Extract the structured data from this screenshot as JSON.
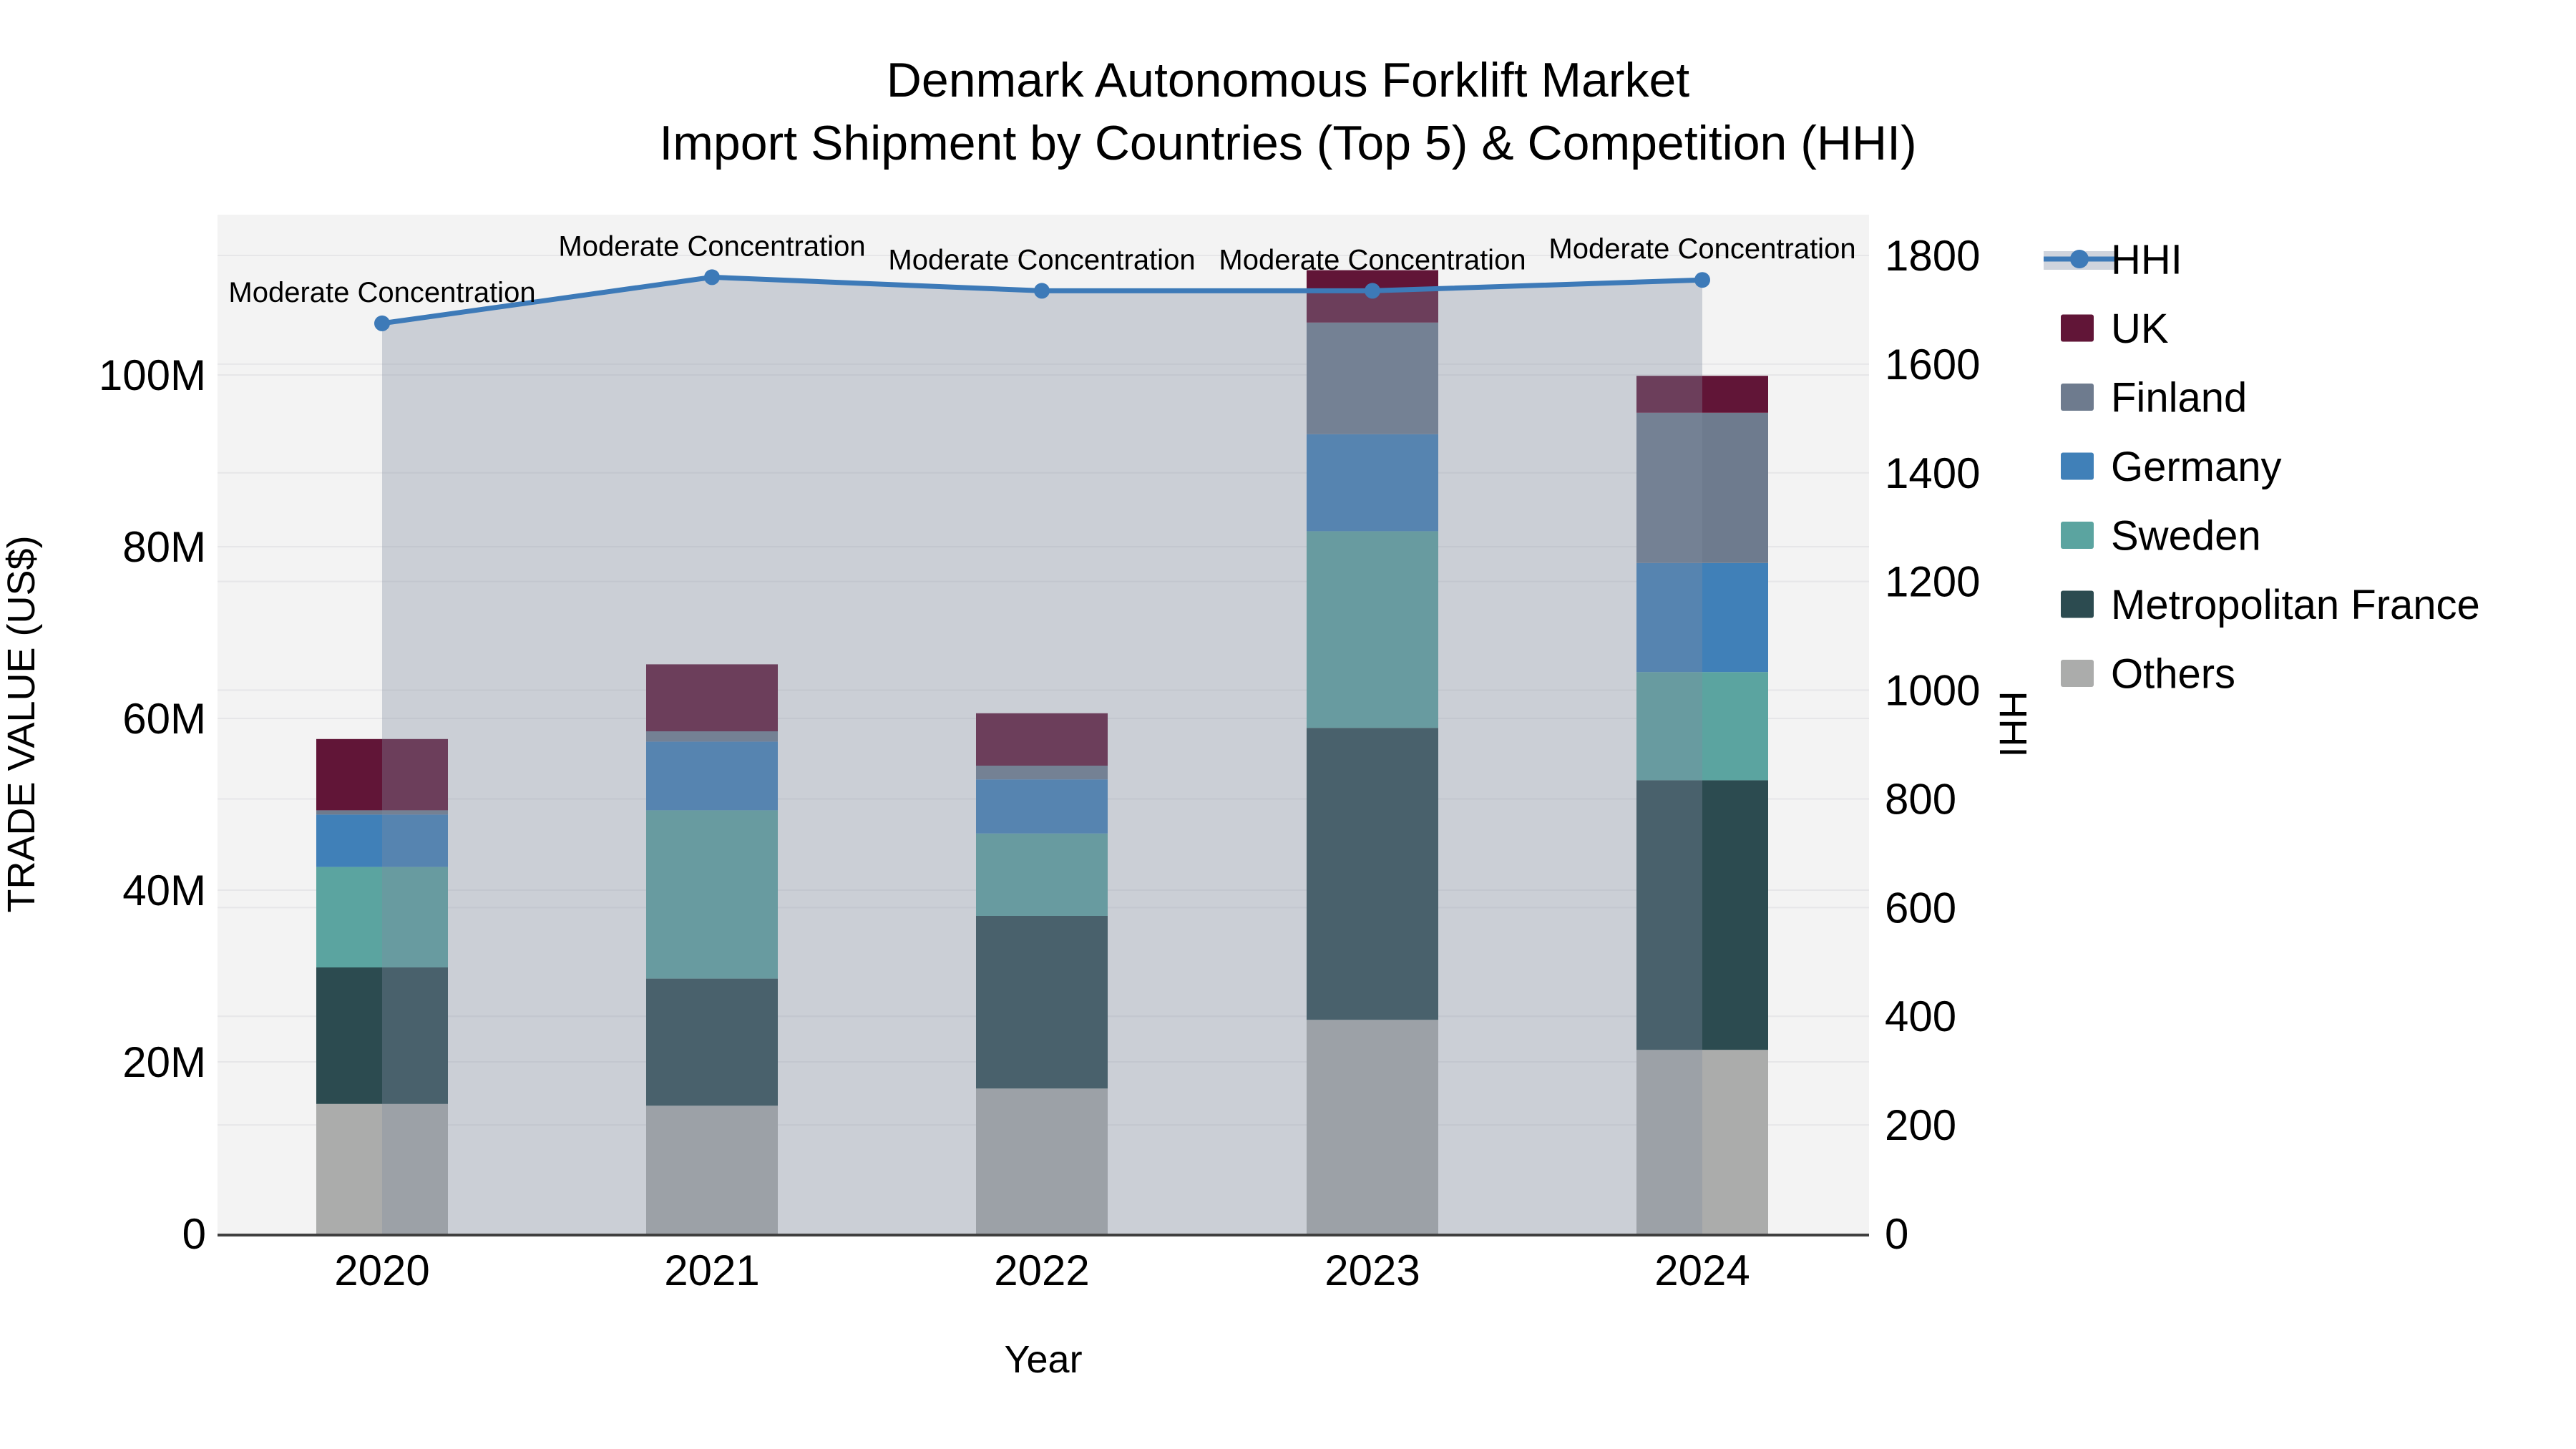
{
  "title": {
    "line1": "Denmark Autonomous Forklift Market",
    "line2": "Import Shipment by Countries (Top 5) & Competition (HHI)"
  },
  "chart_data": {
    "type": "bar",
    "subtype": "stacked-bar-with-line-overlay",
    "categories": [
      "2020",
      "2021",
      "2022",
      "2023",
      "2024"
    ],
    "values_unit": "million US$",
    "series": [
      {
        "name": "Others",
        "color": "#abacab",
        "values": [
          15.1,
          14.9,
          16.9,
          24.9,
          21.4
        ]
      },
      {
        "name": "Metropolitan France",
        "color": "#2c4b50",
        "values": [
          15.9,
          14.8,
          20.1,
          34.0,
          31.4
        ]
      },
      {
        "name": "Sweden",
        "color": "#5ba4a0",
        "values": [
          11.7,
          19.6,
          9.6,
          22.9,
          12.6
        ]
      },
      {
        "name": "Germany",
        "color": "#4080b8",
        "values": [
          6.1,
          8.0,
          6.3,
          11.3,
          12.7
        ]
      },
      {
        "name": "Finland",
        "color": "#6e7b8e",
        "values": [
          0.5,
          1.2,
          1.6,
          13.0,
          17.5
        ]
      },
      {
        "name": "UK",
        "color": "#611537",
        "values": [
          8.3,
          7.8,
          6.1,
          6.1,
          4.3
        ]
      }
    ],
    "stack_totals": [
      57.6,
      66.3,
      60.6,
      112.2,
      99.9
    ],
    "line_series": {
      "name": "HHI",
      "color": "#3d7ab8",
      "area_fill": "rgba(130,140,160,0.35)",
      "values": [
        1675,
        1760,
        1735,
        1735,
        1755
      ],
      "axis": "y2"
    },
    "point_annotations": [
      "Moderate Concentration",
      "Moderate Concentration",
      "Moderate Concentration",
      "Moderate Concentration",
      "Moderate Concentration"
    ],
    "xlabel": "Year",
    "y1": {
      "title": "TRADE VALUE (US$)",
      "tick_values": [
        0,
        20,
        40,
        60,
        80,
        100
      ],
      "tick_labels": [
        "0",
        "20M",
        "40M",
        "60M",
        "80M",
        "100M"
      ],
      "range": [
        0,
        118.7
      ]
    },
    "y2": {
      "title": "HHI",
      "tick_values": [
        0,
        200,
        400,
        600,
        800,
        1000,
        1200,
        1400,
        1600,
        1800
      ],
      "tick_labels": [
        "0",
        "200",
        "400",
        "600",
        "800",
        "1000",
        "1200",
        "1400",
        "1600",
        "1800"
      ],
      "range": [
        0,
        1875
      ]
    },
    "grid": "horizontal",
    "plot_background": "#f3f3f3",
    "gridline_color": "#e6e6e8",
    "axisline_color": "#3f3f3f",
    "legend_position": "right"
  },
  "legend": {
    "items": [
      {
        "label": "HHI",
        "type": "line"
      },
      {
        "label": "UK",
        "type": "swatch"
      },
      {
        "label": "Finland",
        "type": "swatch"
      },
      {
        "label": "Germany",
        "type": "swatch"
      },
      {
        "label": "Sweden",
        "type": "swatch"
      },
      {
        "label": "Metropolitan France",
        "type": "swatch"
      },
      {
        "label": "Others",
        "type": "swatch"
      }
    ]
  }
}
